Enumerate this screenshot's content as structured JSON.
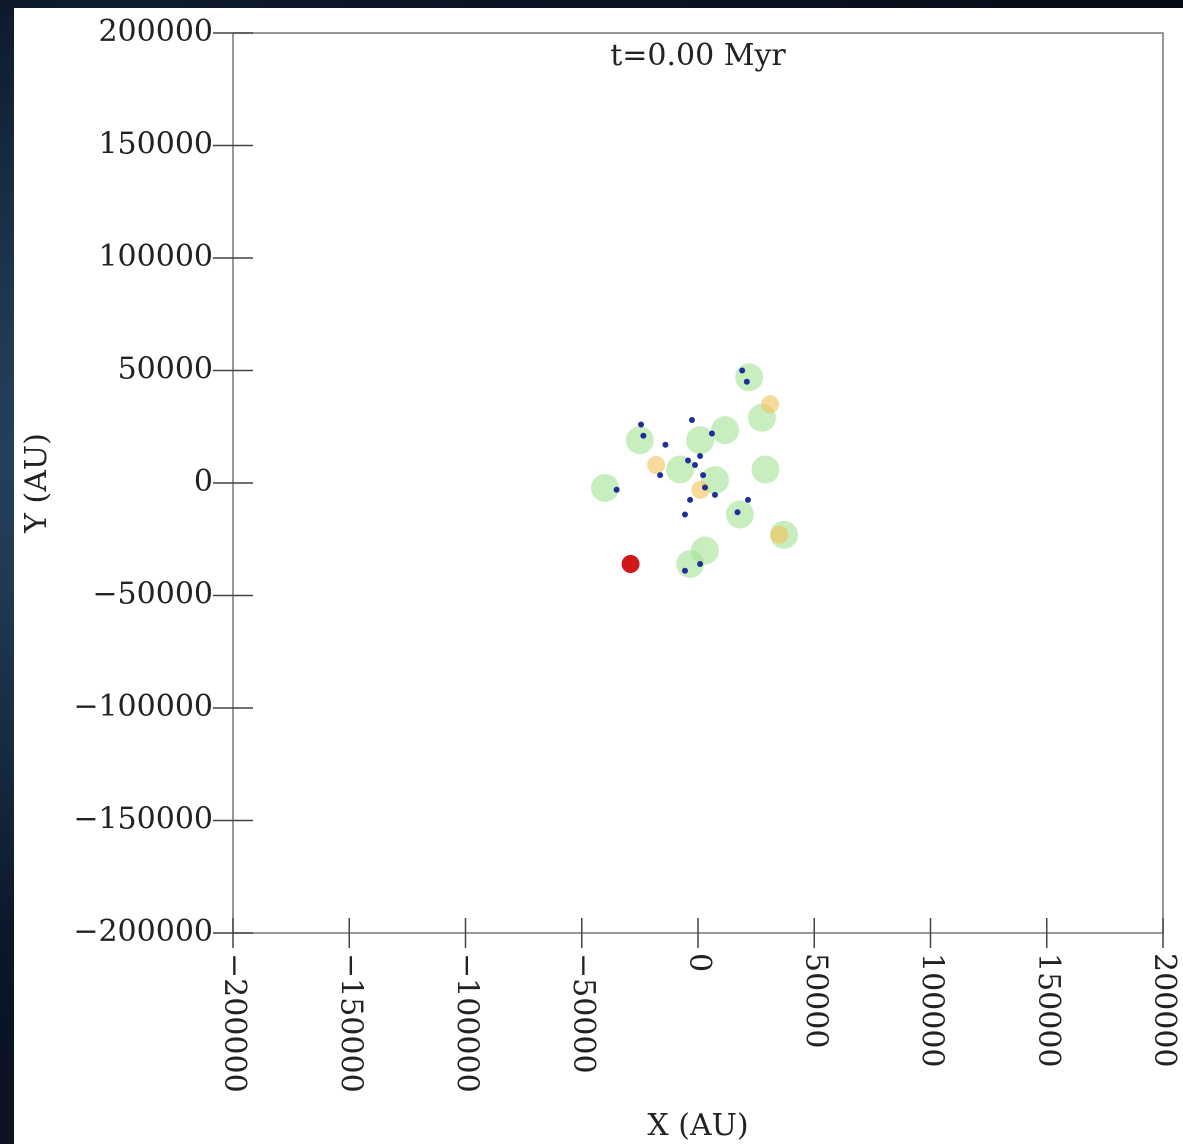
{
  "chart_data": {
    "type": "scatter",
    "title": "t=0.00 Myr",
    "x_label": "X (AU)",
    "y_label": "Y (AU)",
    "xlim": [
      -200000,
      200000
    ],
    "ylim": [
      -200000,
      200000
    ],
    "xticks": [
      {
        "value": -200000,
        "label": "−200000"
      },
      {
        "value": -150000,
        "label": "−150000"
      },
      {
        "value": -100000,
        "label": "−100000"
      },
      {
        "value": -50000,
        "label": "−50000"
      },
      0,
      50000,
      100000,
      150000,
      200000
    ],
    "yticks": [
      {
        "value": -200000,
        "label": "−200000"
      },
      {
        "value": -150000,
        "label": "−150000"
      },
      {
        "value": -100000,
        "label": "−100000"
      },
      {
        "value": -50000,
        "label": "−50000"
      },
      0,
      50000,
      100000,
      150000,
      200000
    ],
    "series": [
      {
        "color": "#9be08a",
        "x": [
          22000,
          27500,
          900,
          -7700,
          7300,
          29000,
          -40000,
          18000,
          3000,
          37000,
          -25000,
          -3400,
          11600
        ],
        "values": [
          47000,
          29000,
          19000,
          6000,
          1300,
          6000,
          -2200,
          -14000,
          -30000,
          -23000,
          19000,
          -36000,
          23500
        ]
      },
      {
        "color": "#f2c25a",
        "x": [
          31000,
          35000,
          1000,
          -18000
        ],
        "values": [
          35000,
          -23000,
          -3000,
          8000
        ]
      },
      {
        "color": "#1f2f9a",
        "x": [
          19000,
          21000,
          -24500,
          -23500,
          -2600,
          6000,
          -14000,
          900,
          -4300,
          -1300,
          2200,
          -16300,
          -35000,
          3000,
          -3400,
          7300,
          -5600,
          21500,
          17000,
          -5600,
          900
        ],
        "values": [
          50000,
          45000,
          26000,
          21000,
          28000,
          22000,
          17000,
          12000,
          10000,
          8000,
          3500,
          3500,
          -3000,
          -2000,
          -7500,
          -5300,
          -14000,
          -7500,
          -13000,
          -39000,
          -36000
        ]
      },
      {
        "color": "#d01818",
        "x": [
          -29000
        ],
        "values": [
          -36000
        ]
      }
    ]
  }
}
